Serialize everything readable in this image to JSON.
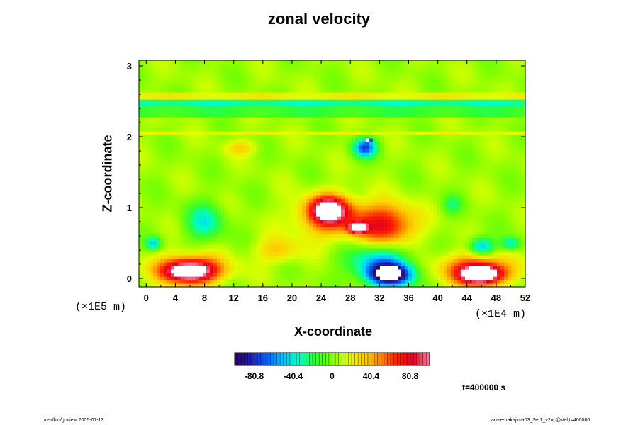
{
  "chart_data": {
    "type": "heatmap",
    "title": "zonal velocity",
    "xlabel": "X-coordinate",
    "ylabel": "Z-coordinate",
    "x_unit_label": "(×1E4 m)",
    "y_unit_label": "(×1E5 m)",
    "xlim": [
      -1,
      52
    ],
    "ylim": [
      -0.12,
      3.08
    ],
    "x_ticks": [
      "0",
      "4",
      "8",
      "12",
      "16",
      "20",
      "24",
      "28",
      "32",
      "36",
      "40",
      "44",
      "48",
      "52"
    ],
    "y_ticks": [
      "0",
      "1",
      "2",
      "3"
    ],
    "colorbar": {
      "range": [
        -101,
        101
      ],
      "tick_labels": [
        "-80.8",
        "-40.4",
        "0",
        "40.4",
        "80.8"
      ],
      "colors": [
        "#300060",
        "#2020b0",
        "#0060ff",
        "#00c8ff",
        "#00ffc0",
        "#30ff30",
        "#80ff00",
        "#e0ff00",
        "#ffd000",
        "#ff8000",
        "#ff2000",
        "#e00020",
        "#ff80a0"
      ]
    },
    "background_value": 5,
    "layers": [
      {
        "z_range": [
          2.55,
          2.65
        ],
        "value": 22
      },
      {
        "z_range": [
          2.45,
          2.54
        ],
        "value": -30
      },
      {
        "z_range": [
          2.3,
          2.44
        ],
        "value": -15
      },
      {
        "z_range": [
          2.02,
          2.06
        ],
        "value": 18
      }
    ],
    "features": [
      {
        "x": 33.5,
        "z": 0.05,
        "rx": 3.5,
        "rz": 0.18,
        "value": -110
      },
      {
        "x": 32,
        "z": 0.25,
        "rx": 5,
        "rz": 0.3,
        "value": -55
      },
      {
        "x": 46,
        "z": 0.05,
        "rx": 3.2,
        "rz": 0.15,
        "value": 115
      },
      {
        "x": 45,
        "z": 0.15,
        "rx": 5.5,
        "rz": 0.25,
        "value": 60
      },
      {
        "x": 6,
        "z": 0.1,
        "rx": 4,
        "rz": 0.18,
        "value": 95
      },
      {
        "x": 6,
        "z": 0.15,
        "rx": 6,
        "rz": 0.25,
        "value": 45
      },
      {
        "x": 25,
        "z": 0.98,
        "rx": 3,
        "rz": 0.22,
        "value": 90
      },
      {
        "x": 29,
        "z": 0.72,
        "rx": 1.3,
        "rz": 0.08,
        "value": 115
      },
      {
        "x": 33,
        "z": 0.75,
        "rx": 4.5,
        "rz": 0.35,
        "value": 70
      },
      {
        "x": 25.5,
        "z": 0.85,
        "rx": 6,
        "rz": 0.35,
        "value": 45
      },
      {
        "x": 8,
        "z": 0.8,
        "rx": 3,
        "rz": 0.3,
        "value": -40
      },
      {
        "x": 30,
        "z": 1.85,
        "rx": 1.8,
        "rz": 0.15,
        "value": -75
      },
      {
        "x": 30.5,
        "z": 1.95,
        "rx": 0.4,
        "rz": 0.03,
        "value": -110
      },
      {
        "x": 46,
        "z": 0.45,
        "rx": 2,
        "rz": 0.15,
        "value": -60
      },
      {
        "x": 1,
        "z": 0.5,
        "rx": 1.2,
        "rz": 0.1,
        "value": -50
      },
      {
        "x": 18,
        "z": 0.4,
        "rx": 3.5,
        "rz": 0.2,
        "value": 30
      },
      {
        "x": 50,
        "z": 0.5,
        "rx": 1.5,
        "rz": 0.1,
        "value": -45
      },
      {
        "x": 42,
        "z": 1.05,
        "rx": 1.5,
        "rz": 0.15,
        "value": -25
      },
      {
        "x": 13,
        "z": 1.85,
        "rx": 2.5,
        "rz": 0.12,
        "value": 25
      }
    ]
  },
  "time_label": "t=400000 s",
  "footer_left": "/usr/bin/gpview 2005-07-13",
  "footer_right": "arare-nakajima03_3e-1_v2nc@Vel,t=400000"
}
